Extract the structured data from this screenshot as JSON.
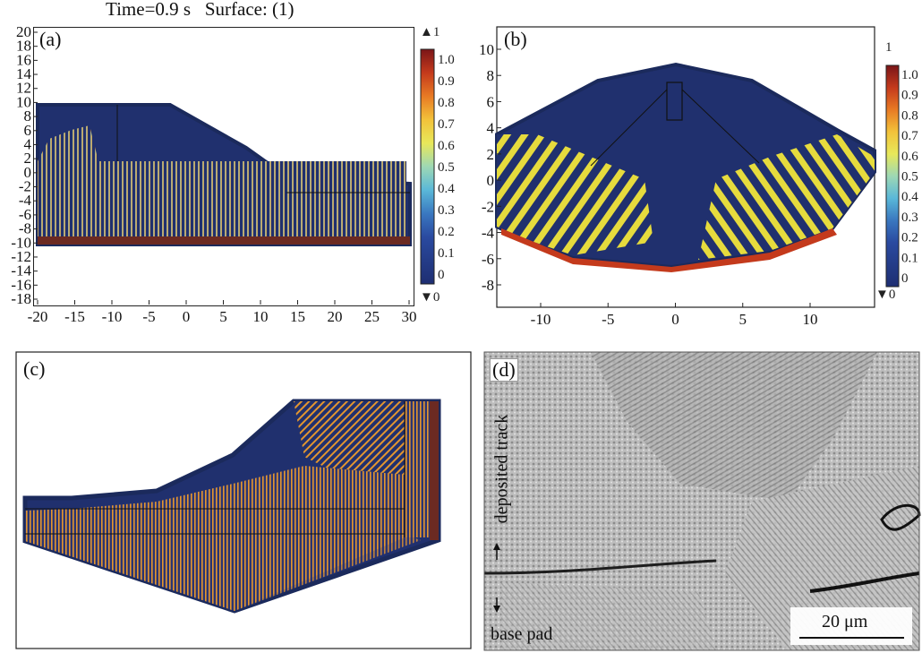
{
  "figure": {
    "title": "Time=0.9 s   Surface: (1)",
    "colors": {
      "background": "#20306e",
      "edge": "#1b2a5c",
      "dendrite_yellow": "#f0e43a",
      "dendrite_orange": "#e4962e",
      "dendrite_cyan": "#78c8d8",
      "base_red": "#6b2a22"
    },
    "colorbar": {
      "top_marker": "▲1",
      "bottom_marker": "▼0",
      "ticks": [
        "1.0",
        "0.9",
        "0.8",
        "0.7",
        "0.6",
        "0.5",
        "0.4",
        "0.3",
        "0.2",
        "0.1",
        "0"
      ],
      "stops": [
        "#7a1518",
        "#c43a1c",
        "#e87a24",
        "#f2c23a",
        "#e8e85a",
        "#9ed8b4",
        "#5ab8d8",
        "#3a78c0",
        "#2a4aa0",
        "#243c88",
        "#1e2e72"
      ]
    },
    "colorbar_b": {
      "top_marker": "1",
      "bottom_marker": "▼0"
    },
    "panels": {
      "a": {
        "label": "(a)",
        "x_ticks": [
          "-20",
          "-15",
          "-10",
          "-5",
          "0",
          "5",
          "10",
          "15",
          "20",
          "25",
          "30"
        ],
        "y_ticks": [
          "20",
          "18",
          "16",
          "14",
          "12",
          "10",
          "8",
          "6",
          "4",
          "2",
          "0",
          "-2",
          "-4",
          "-6",
          "-8",
          "-10",
          "-12",
          "-14",
          "-16",
          "-18"
        ]
      },
      "b": {
        "label": "(b)",
        "x_ticks": [
          "-10",
          "-5",
          "0",
          "5",
          "10"
        ],
        "y_ticks": [
          "10",
          "8",
          "6",
          "4",
          "2",
          "0",
          "-2",
          "-4",
          "-6",
          "-8"
        ]
      },
      "c": {
        "label": "(c)"
      },
      "d": {
        "label": "(d)",
        "upper_annotation": "deposited track",
        "lower_annotation": "base pad",
        "scale_bar": "20 μm"
      }
    }
  }
}
